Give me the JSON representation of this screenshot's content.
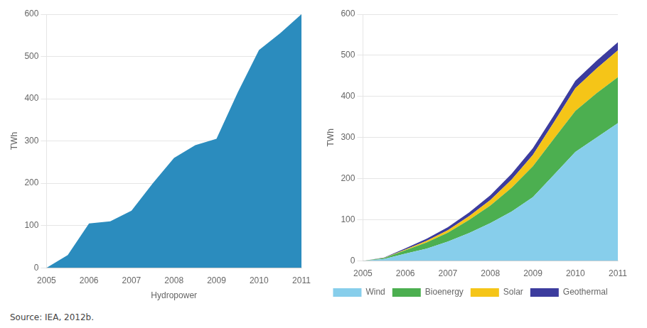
{
  "chart_data": [
    {
      "type": "area",
      "xlabel": "Hydropower",
      "ylabel": "TWh",
      "x": [
        2005,
        2005.5,
        2006,
        2006.5,
        2007,
        2007.5,
        2008,
        2008.5,
        2009,
        2009.5,
        2010,
        2010.5,
        2011
      ],
      "values": [
        0,
        30,
        105,
        110,
        135,
        200,
        260,
        290,
        305,
        415,
        515,
        555,
        600
      ],
      "color": "#2b8cbe",
      "xlim": [
        2005,
        2011
      ],
      "xticks": [
        2005,
        2006,
        2007,
        2008,
        2009,
        2010,
        2011
      ],
      "ylim": [
        0,
        600
      ],
      "yticks": [
        0,
        100,
        200,
        300,
        400,
        500,
        600
      ],
      "grid": "y",
      "annotation": "Source: IEA, 2012b."
    },
    {
      "type": "area",
      "ylabel": "TWh",
      "stacked": true,
      "x": [
        2005,
        2005.5,
        2006,
        2006.5,
        2007,
        2007.5,
        2008,
        2008.5,
        2009,
        2009.5,
        2010,
        2010.5,
        2011
      ],
      "series": [
        {
          "name": "Wind",
          "color": "#87ceeb",
          "values": [
            0,
            5,
            18,
            30,
            47,
            68,
            92,
            120,
            155,
            210,
            265,
            300,
            335
          ]
        },
        {
          "name": "Bioenergy",
          "color": "#4caf50",
          "values": [
            0,
            2,
            8,
            15,
            22,
            32,
            43,
            58,
            75,
            88,
            100,
            108,
            112
          ]
        },
        {
          "name": "Solar",
          "color": "#f5c518",
          "values": [
            0,
            0.5,
            2,
            4,
            6,
            9,
            13,
            20,
            28,
            40,
            55,
            60,
            65
          ]
        },
        {
          "name": "Geothermal",
          "color": "#3c3c9e",
          "values": [
            0,
            1,
            3,
            5,
            7,
            9,
            12,
            14,
            16,
            17,
            18,
            19,
            20
          ]
        }
      ],
      "xlim": [
        2005,
        2011
      ],
      "xticks": [
        2005,
        2006,
        2007,
        2008,
        2009,
        2010,
        2011
      ],
      "ylim": [
        0,
        600
      ],
      "yticks": [
        0,
        100,
        200,
        300,
        400,
        500,
        600
      ],
      "grid": "y",
      "legend": "bottom"
    }
  ]
}
